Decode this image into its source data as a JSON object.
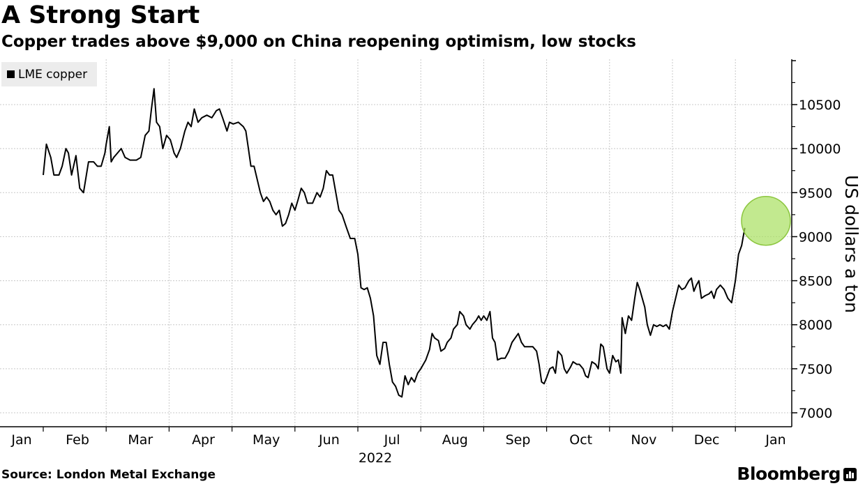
{
  "header": {
    "title": "A Strong Start",
    "subtitle": "Copper trades above $9,000 on China reopening optimism, low stocks"
  },
  "legend": {
    "label": "LME copper"
  },
  "footer": {
    "source": "Source: London Metal Exchange",
    "brand": "Bloomberg"
  },
  "colors": {
    "line": "#000000",
    "highlight": "#a8e060",
    "grid": "#c8c8c8"
  },
  "chart_data": {
    "type": "line",
    "title": "A Strong Start",
    "subtitle": "Copper trades above $9,000 on China reopening optimism, low stocks",
    "xlabel": "",
    "ylabel": "US dollars a ton",
    "year_label": "2022",
    "ylim": [
      6900,
      10950
    ],
    "xlim": [
      0,
      12.4
    ],
    "grid": true,
    "legend_position": "top-left",
    "month_ticks": [
      "Jan",
      "Feb",
      "Mar",
      "Apr",
      "May",
      "Jun",
      "Jul",
      "Aug",
      "Sep",
      "Oct",
      "Nov",
      "Dec",
      "Jan"
    ],
    "y_ticks": [
      7000,
      7500,
      8000,
      8500,
      9000,
      9500,
      10000,
      10500
    ],
    "highlight": {
      "x": 12.14,
      "y": 9180,
      "note": "latest level circled"
    },
    "series": [
      {
        "name": "LME copper",
        "points": [
          [
            0.0,
            9700
          ],
          [
            0.05,
            10050
          ],
          [
            0.12,
            9900
          ],
          [
            0.17,
            9700
          ],
          [
            0.25,
            9700
          ],
          [
            0.3,
            9800
          ],
          [
            0.36,
            10000
          ],
          [
            0.4,
            9950
          ],
          [
            0.45,
            9700
          ],
          [
            0.52,
            9920
          ],
          [
            0.58,
            9550
          ],
          [
            0.64,
            9500
          ],
          [
            0.72,
            9850
          ],
          [
            0.8,
            9850
          ],
          [
            0.86,
            9800
          ],
          [
            0.92,
            9800
          ],
          [
            0.98,
            9950
          ],
          [
            1.0,
            10050
          ],
          [
            1.05,
            10250
          ],
          [
            1.08,
            9850
          ],
          [
            1.12,
            9900
          ],
          [
            1.18,
            9950
          ],
          [
            1.24,
            10000
          ],
          [
            1.3,
            9900
          ],
          [
            1.38,
            9870
          ],
          [
            1.48,
            9870
          ],
          [
            1.55,
            9900
          ],
          [
            1.62,
            10150
          ],
          [
            1.68,
            10200
          ],
          [
            1.72,
            10450
          ],
          [
            1.76,
            10680
          ],
          [
            1.8,
            10300
          ],
          [
            1.85,
            10250
          ],
          [
            1.9,
            10000
          ],
          [
            1.96,
            10150
          ],
          [
            2.02,
            10100
          ],
          [
            2.08,
            9950
          ],
          [
            2.12,
            9900
          ],
          [
            2.18,
            10000
          ],
          [
            2.25,
            10200
          ],
          [
            2.3,
            10300
          ],
          [
            2.35,
            10250
          ],
          [
            2.4,
            10450
          ],
          [
            2.46,
            10300
          ],
          [
            2.52,
            10350
          ],
          [
            2.6,
            10380
          ],
          [
            2.68,
            10350
          ],
          [
            2.75,
            10430
          ],
          [
            2.8,
            10450
          ],
          [
            2.85,
            10350
          ],
          [
            2.92,
            10200
          ],
          [
            2.96,
            10300
          ],
          [
            3.02,
            10280
          ],
          [
            3.1,
            10300
          ],
          [
            3.18,
            10250
          ],
          [
            3.22,
            10200
          ],
          [
            3.26,
            10000
          ],
          [
            3.3,
            9800
          ],
          [
            3.35,
            9800
          ],
          [
            3.4,
            9650
          ],
          [
            3.45,
            9500
          ],
          [
            3.5,
            9400
          ],
          [
            3.55,
            9450
          ],
          [
            3.6,
            9400
          ],
          [
            3.65,
            9300
          ],
          [
            3.7,
            9250
          ],
          [
            3.75,
            9300
          ],
          [
            3.8,
            9120
          ],
          [
            3.85,
            9150
          ],
          [
            3.9,
            9250
          ],
          [
            3.95,
            9380
          ],
          [
            4.0,
            9300
          ],
          [
            4.05,
            9420
          ],
          [
            4.1,
            9550
          ],
          [
            4.15,
            9500
          ],
          [
            4.2,
            9380
          ],
          [
            4.28,
            9380
          ],
          [
            4.35,
            9500
          ],
          [
            4.4,
            9450
          ],
          [
            4.45,
            9550
          ],
          [
            4.5,
            9750
          ],
          [
            4.55,
            9700
          ],
          [
            4.6,
            9700
          ],
          [
            4.65,
            9500
          ],
          [
            4.7,
            9300
          ],
          [
            4.75,
            9250
          ],
          [
            4.82,
            9100
          ],
          [
            4.88,
            8980
          ],
          [
            4.95,
            8980
          ],
          [
            5.0,
            8800
          ],
          [
            5.05,
            8420
          ],
          [
            5.1,
            8400
          ],
          [
            5.15,
            8420
          ],
          [
            5.2,
            8300
          ],
          [
            5.25,
            8100
          ],
          [
            5.3,
            7650
          ],
          [
            5.35,
            7550
          ],
          [
            5.4,
            7800
          ],
          [
            5.45,
            7800
          ],
          [
            5.5,
            7550
          ],
          [
            5.55,
            7350
          ],
          [
            5.6,
            7300
          ],
          [
            5.65,
            7200
          ],
          [
            5.7,
            7180
          ],
          [
            5.75,
            7420
          ],
          [
            5.8,
            7320
          ],
          [
            5.85,
            7400
          ],
          [
            5.9,
            7350
          ],
          [
            5.95,
            7450
          ],
          [
            6.0,
            7500
          ],
          [
            6.08,
            7600
          ],
          [
            6.14,
            7720
          ],
          [
            6.18,
            7900
          ],
          [
            6.22,
            7850
          ],
          [
            6.28,
            7820
          ],
          [
            6.32,
            7700
          ],
          [
            6.38,
            7730
          ],
          [
            6.42,
            7800
          ],
          [
            6.48,
            7850
          ],
          [
            6.52,
            7950
          ],
          [
            6.58,
            8000
          ],
          [
            6.62,
            8150
          ],
          [
            6.68,
            8100
          ],
          [
            6.72,
            8000
          ],
          [
            6.78,
            7950
          ],
          [
            6.82,
            8000
          ],
          [
            6.88,
            8050
          ],
          [
            6.92,
            8100
          ],
          [
            6.96,
            8050
          ],
          [
            7.0,
            8100
          ],
          [
            7.05,
            8050
          ],
          [
            7.1,
            8150
          ],
          [
            7.14,
            7850
          ],
          [
            7.18,
            7800
          ],
          [
            7.22,
            7600
          ],
          [
            7.28,
            7620
          ],
          [
            7.34,
            7620
          ],
          [
            7.4,
            7700
          ],
          [
            7.45,
            7800
          ],
          [
            7.5,
            7850
          ],
          [
            7.55,
            7900
          ],
          [
            7.6,
            7800
          ],
          [
            7.65,
            7750
          ],
          [
            7.7,
            7750
          ],
          [
            7.78,
            7750
          ],
          [
            7.84,
            7700
          ],
          [
            7.88,
            7550
          ],
          [
            7.92,
            7350
          ],
          [
            7.96,
            7330
          ],
          [
            8.0,
            7400
          ],
          [
            8.05,
            7500
          ],
          [
            8.1,
            7520
          ],
          [
            8.14,
            7450
          ],
          [
            8.18,
            7700
          ],
          [
            8.24,
            7650
          ],
          [
            8.28,
            7500
          ],
          [
            8.32,
            7450
          ],
          [
            8.38,
            7520
          ],
          [
            8.42,
            7580
          ],
          [
            8.48,
            7550
          ],
          [
            8.52,
            7550
          ],
          [
            8.58,
            7500
          ],
          [
            8.62,
            7420
          ],
          [
            8.66,
            7400
          ],
          [
            8.72,
            7580
          ],
          [
            8.78,
            7550
          ],
          [
            8.82,
            7500
          ],
          [
            8.86,
            7780
          ],
          [
            8.9,
            7750
          ],
          [
            8.96,
            7500
          ],
          [
            9.0,
            7450
          ],
          [
            9.05,
            7650
          ],
          [
            9.1,
            7580
          ],
          [
            9.14,
            7600
          ],
          [
            9.18,
            7450
          ],
          [
            9.2,
            8080
          ],
          [
            9.25,
            7900
          ],
          [
            9.3,
            8100
          ],
          [
            9.35,
            8050
          ],
          [
            9.4,
            8300
          ],
          [
            9.44,
            8480
          ],
          [
            9.48,
            8400
          ],
          [
            9.52,
            8300
          ],
          [
            9.56,
            8200
          ],
          [
            9.6,
            8000
          ],
          [
            9.65,
            7880
          ],
          [
            9.7,
            8000
          ],
          [
            9.75,
            7980
          ],
          [
            9.8,
            8000
          ],
          [
            9.85,
            7980
          ],
          [
            9.9,
            8000
          ],
          [
            9.95,
            7950
          ],
          [
            10.0,
            8150
          ],
          [
            10.05,
            8300
          ],
          [
            10.1,
            8450
          ],
          [
            10.15,
            8400
          ],
          [
            10.2,
            8420
          ],
          [
            10.26,
            8500
          ],
          [
            10.3,
            8530
          ],
          [
            10.34,
            8380
          ],
          [
            10.38,
            8450
          ],
          [
            10.42,
            8500
          ],
          [
            10.46,
            8300
          ],
          [
            10.52,
            8330
          ],
          [
            10.58,
            8350
          ],
          [
            10.62,
            8380
          ],
          [
            10.66,
            8300
          ],
          [
            10.7,
            8400
          ],
          [
            10.76,
            8450
          ],
          [
            10.82,
            8400
          ],
          [
            10.88,
            8300
          ],
          [
            10.94,
            8250
          ],
          [
            11.0,
            8500
          ],
          [
            11.05,
            8800
          ],
          [
            11.1,
            8900
          ],
          [
            11.15,
            9100
          ]
        ]
      }
    ]
  }
}
